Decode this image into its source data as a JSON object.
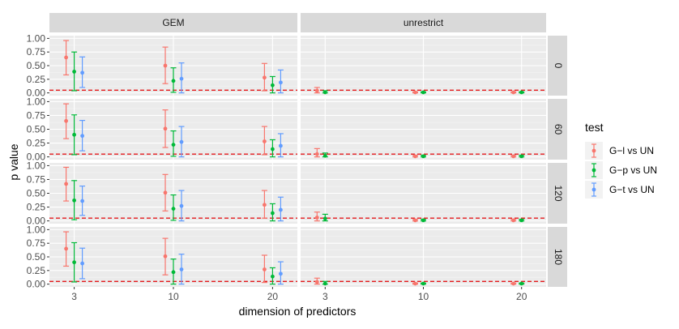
{
  "chart_data": {
    "type": "errorbar-faceted",
    "xlabel": "dimension of predictors",
    "ylabel": "p value",
    "x_categories": [
      "3",
      "10",
      "20"
    ],
    "y_ticks": [
      "0.00",
      "0.25",
      "0.50",
      "0.75",
      "1.00"
    ],
    "ylim": [
      -0.05,
      1.05
    ],
    "reference_line": {
      "y": 0.05,
      "color": "#e41a1c",
      "style": "dashed"
    },
    "col_facets": [
      "GEM",
      "unrestrict"
    ],
    "row_facets": [
      "0",
      "60",
      "120",
      "180"
    ],
    "legend_title": "test",
    "legend_position": "right",
    "series": [
      {
        "name": "G−l vs UN",
        "color": "#F8766D"
      },
      {
        "name": "G−p vs UN",
        "color": "#00BA38"
      },
      {
        "name": "G−t vs UN",
        "color": "#619CFF"
      }
    ],
    "panels": [
      {
        "col": "GEM",
        "row": "0",
        "data": [
          [
            [
              0.65,
              0.33,
              0.96
            ],
            [
              0.39,
              0.04,
              0.75
            ],
            [
              0.37,
              0.1,
              0.66
            ]
          ],
          [
            [
              0.5,
              0.17,
              0.84
            ],
            [
              0.22,
              0.01,
              0.46
            ],
            [
              0.26,
              0.0,
              0.55
            ]
          ],
          [
            [
              0.28,
              0.04,
              0.54
            ],
            [
              0.14,
              0.0,
              0.3
            ],
            [
              0.19,
              0.0,
              0.42
            ]
          ]
        ]
      },
      {
        "col": "unrestrict",
        "row": "0",
        "data": [
          [
            [
              0.04,
              0.0,
              0.1
            ],
            [
              0.01,
              0.0,
              0.04
            ],
            [
              null,
              null,
              null
            ]
          ],
          [
            [
              0.01,
              0.0,
              0.02
            ],
            [
              0.01,
              0.0,
              0.02
            ],
            [
              null,
              null,
              null
            ]
          ],
          [
            [
              0.01,
              0.0,
              0.02
            ],
            [
              0.01,
              0.0,
              0.02
            ],
            [
              null,
              null,
              null
            ]
          ]
        ]
      },
      {
        "col": "GEM",
        "row": "60",
        "data": [
          [
            [
              0.65,
              0.33,
              0.96
            ],
            [
              0.4,
              0.04,
              0.76
            ],
            [
              0.38,
              0.11,
              0.66
            ]
          ],
          [
            [
              0.51,
              0.17,
              0.85
            ],
            [
              0.22,
              0.01,
              0.47
            ],
            [
              0.27,
              0.0,
              0.55
            ]
          ],
          [
            [
              0.28,
              0.04,
              0.55
            ],
            [
              0.14,
              0.0,
              0.31
            ],
            [
              0.2,
              0.0,
              0.42
            ]
          ]
        ]
      },
      {
        "col": "unrestrict",
        "row": "60",
        "data": [
          [
            [
              0.05,
              0.0,
              0.15
            ],
            [
              0.02,
              0.0,
              0.07
            ],
            [
              null,
              null,
              null
            ]
          ],
          [
            [
              0.01,
              0.0,
              0.03
            ],
            [
              0.01,
              0.0,
              0.03
            ],
            [
              null,
              null,
              null
            ]
          ],
          [
            [
              0.01,
              0.0,
              0.03
            ],
            [
              0.01,
              0.0,
              0.03
            ],
            [
              null,
              null,
              null
            ]
          ]
        ]
      },
      {
        "col": "GEM",
        "row": "120",
        "data": [
          [
            [
              0.67,
              0.36,
              0.97
            ],
            [
              0.37,
              0.02,
              0.73
            ],
            [
              0.36,
              0.1,
              0.63
            ]
          ],
          [
            [
              0.51,
              0.18,
              0.84
            ],
            [
              0.22,
              0.01,
              0.47
            ],
            [
              0.27,
              0.0,
              0.55
            ]
          ],
          [
            [
              0.29,
              0.05,
              0.55
            ],
            [
              0.14,
              0.0,
              0.31
            ],
            [
              0.2,
              0.0,
              0.43
            ]
          ]
        ]
      },
      {
        "col": "unrestrict",
        "row": "120",
        "data": [
          [
            [
              0.06,
              0.0,
              0.16
            ],
            [
              0.04,
              0.0,
              0.12
            ],
            [
              null,
              null,
              null
            ]
          ],
          [
            [
              0.01,
              0.0,
              0.03
            ],
            [
              0.01,
              0.0,
              0.03
            ],
            [
              null,
              null,
              null
            ]
          ],
          [
            [
              0.01,
              0.0,
              0.03
            ],
            [
              0.01,
              0.0,
              0.03
            ],
            [
              null,
              null,
              null
            ]
          ]
        ]
      },
      {
        "col": "GEM",
        "row": "180",
        "data": [
          [
            [
              0.65,
              0.33,
              0.96
            ],
            [
              0.4,
              0.04,
              0.76
            ],
            [
              0.38,
              0.1,
              0.66
            ]
          ],
          [
            [
              0.51,
              0.17,
              0.84
            ],
            [
              0.22,
              0.0,
              0.46
            ],
            [
              0.27,
              0.0,
              0.55
            ]
          ],
          [
            [
              0.27,
              0.03,
              0.53
            ],
            [
              0.14,
              0.0,
              0.3
            ],
            [
              0.19,
              0.0,
              0.41
            ]
          ]
        ]
      },
      {
        "col": "unrestrict",
        "row": "180",
        "data": [
          [
            [
              0.04,
              0.0,
              0.11
            ],
            [
              0.01,
              0.0,
              0.05
            ],
            [
              null,
              null,
              null
            ]
          ],
          [
            [
              0.01,
              0.0,
              0.02
            ],
            [
              0.01,
              0.0,
              0.02
            ],
            [
              null,
              null,
              null
            ]
          ],
          [
            [
              0.01,
              0.0,
              0.02
            ],
            [
              0.01,
              0.0,
              0.02
            ],
            [
              null,
              null,
              null
            ]
          ]
        ]
      }
    ]
  }
}
